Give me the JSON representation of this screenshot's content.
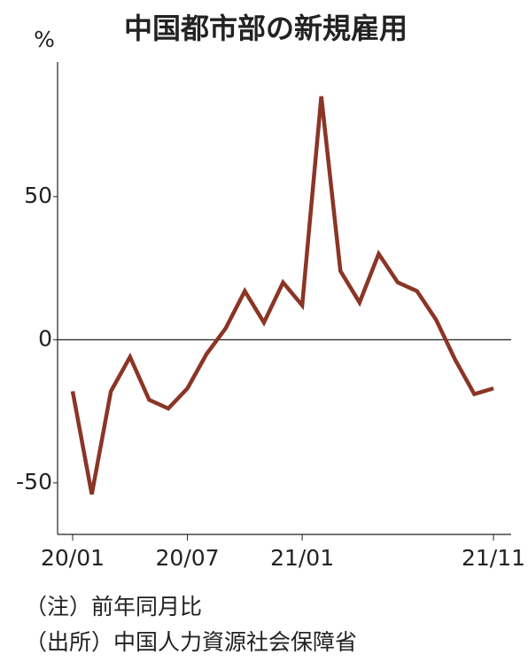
{
  "chart_data": {
    "type": "line",
    "title": "中国都市部の新規雇用",
    "y_label": "%",
    "categories": [
      "20/01",
      null,
      null,
      null,
      null,
      null,
      "20/07",
      null,
      null,
      null,
      null,
      null,
      "21/01",
      null,
      null,
      null,
      null,
      null,
      null,
      null,
      null,
      null,
      "21/11"
    ],
    "series": [
      {
        "name": "新規雇用",
        "color": "#8b3526",
        "values": [
          -18,
          -54,
          -18,
          -6,
          -21,
          -24,
          -17,
          -5,
          4,
          17,
          6,
          20,
          12,
          85,
          24,
          13,
          30,
          20,
          17,
          7,
          -7,
          -19,
          -17
        ]
      }
    ],
    "ylim": [
      -68,
      97
    ],
    "yticks": [
      -50,
      0,
      50
    ],
    "notes": [
      "（注）前年同月比",
      "（出所）中国人力資源社会保障省"
    ]
  }
}
